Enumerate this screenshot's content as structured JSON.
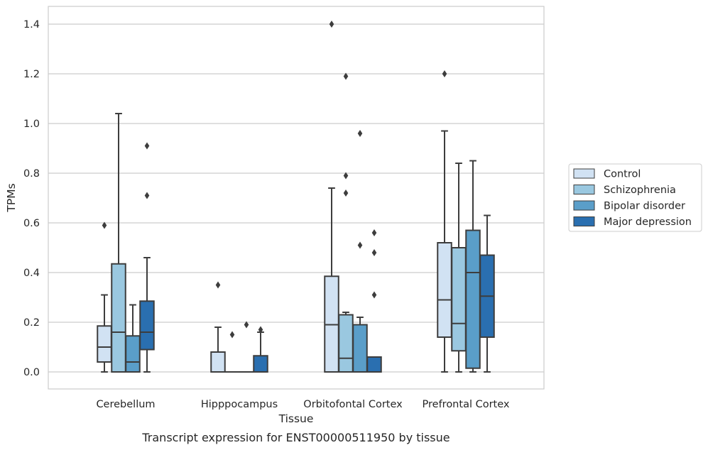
{
  "chart_data": {
    "type": "box",
    "xlabel": "Tissue",
    "ylabel": "TPMs",
    "caption": "Transcript expression for ENST00000511950 by tissue",
    "ylim": [
      -0.07,
      1.47
    ],
    "yticks": [
      0.0,
      0.2,
      0.4,
      0.6,
      0.8,
      1.0,
      1.2,
      1.4
    ],
    "ytick_labels": [
      "0.0",
      "0.2",
      "0.4",
      "0.6",
      "0.8",
      "1.0",
      "1.2",
      "1.4"
    ],
    "grid": "horizontal",
    "legend_position": "right",
    "categories": [
      "Cerebellum",
      "Hipppocampus",
      "Orbitofontal Cortex",
      "Prefrontal Cortex"
    ],
    "series": [
      {
        "name": "Control",
        "color": "#d1e2f3",
        "boxes": [
          {
            "whislo": 0.0,
            "q1": 0.04,
            "med": 0.1,
            "q3": 0.185,
            "whishi": 0.31,
            "fliers": [
              0.59
            ]
          },
          {
            "whislo": 0.0,
            "q1": 0.0,
            "med": 0.0,
            "q3": 0.08,
            "whishi": 0.18,
            "fliers": [
              0.35
            ]
          },
          {
            "whislo": 0.0,
            "q1": 0.0,
            "med": 0.19,
            "q3": 0.385,
            "whishi": 0.74,
            "fliers": [
              1.4
            ]
          },
          {
            "whislo": 0.0,
            "q1": 0.14,
            "med": 0.29,
            "q3": 0.52,
            "whishi": 0.97,
            "fliers": [
              1.2
            ]
          }
        ]
      },
      {
        "name": "Schizophrenia",
        "color": "#9ac8e0",
        "boxes": [
          {
            "whislo": 0.0,
            "q1": 0.0,
            "med": 0.16,
            "q3": 0.435,
            "whishi": 1.04,
            "fliers": []
          },
          {
            "whislo": 0.0,
            "q1": 0.0,
            "med": 0.0,
            "q3": 0.0,
            "whishi": 0.0,
            "fliers": [
              0.15
            ]
          },
          {
            "whislo": 0.0,
            "q1": 0.0,
            "med": 0.055,
            "q3": 0.23,
            "whishi": 0.24,
            "fliers": [
              1.19,
              0.79,
              0.72
            ]
          },
          {
            "whislo": 0.0,
            "q1": 0.085,
            "med": 0.195,
            "q3": 0.5,
            "whishi": 0.84,
            "fliers": []
          }
        ]
      },
      {
        "name": "Bipolar disorder",
        "color": "#5a9ec9",
        "boxes": [
          {
            "whislo": 0.0,
            "q1": 0.0,
            "med": 0.04,
            "q3": 0.145,
            "whishi": 0.27,
            "fliers": []
          },
          {
            "whislo": 0.0,
            "q1": 0.0,
            "med": 0.0,
            "q3": 0.0,
            "whishi": 0.0,
            "fliers": [
              0.19
            ]
          },
          {
            "whislo": 0.0,
            "q1": 0.0,
            "med": 0.19,
            "q3": 0.19,
            "whishi": 0.22,
            "fliers": [
              0.96,
              0.51
            ]
          },
          {
            "whislo": 0.0,
            "q1": 0.015,
            "med": 0.4,
            "q3": 0.57,
            "whishi": 0.85,
            "fliers": []
          }
        ]
      },
      {
        "name": "Major depression",
        "color": "#2a6fb0",
        "boxes": [
          {
            "whislo": 0.0,
            "q1": 0.09,
            "med": 0.16,
            "q3": 0.285,
            "whishi": 0.46,
            "fliers": [
              0.91,
              0.71
            ]
          },
          {
            "whislo": 0.0,
            "q1": 0.0,
            "med": 0.0,
            "q3": 0.065,
            "whishi": 0.16,
            "fliers": [
              0.17
            ]
          },
          {
            "whislo": 0.0,
            "q1": 0.0,
            "med": 0.0,
            "q3": 0.06,
            "whishi": 0.06,
            "fliers": [
              0.56,
              0.48,
              0.31
            ]
          },
          {
            "whislo": 0.0,
            "q1": 0.14,
            "med": 0.305,
            "q3": 0.47,
            "whishi": 0.63,
            "fliers": []
          }
        ]
      }
    ]
  }
}
